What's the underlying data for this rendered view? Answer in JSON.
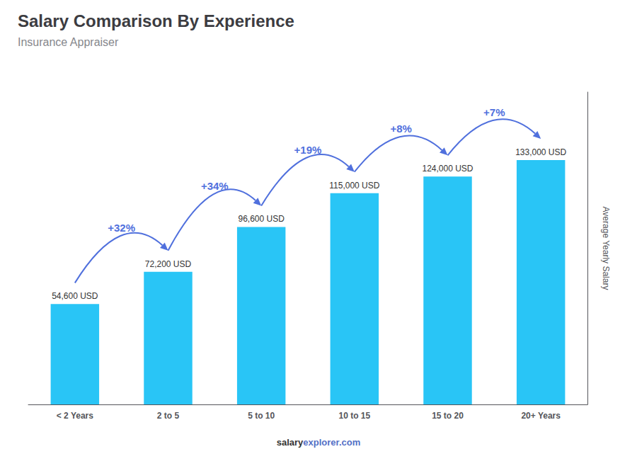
{
  "chart_data": {
    "type": "bar",
    "title": "Salary Comparison By Experience",
    "subtitle": "Insurance Appraiser",
    "ylabel": "Average Yearly Salary",
    "footer": [
      "salary",
      "explorer.com"
    ],
    "categories": [
      "< 2 Years",
      "2 to 5",
      "5 to 10",
      "10 to 15",
      "15 to 20",
      "20+ Years"
    ],
    "values": [
      54600,
      72200,
      96600,
      115000,
      124000,
      133000
    ],
    "value_labels": [
      "54,600 USD",
      "72,200 USD",
      "96,600 USD",
      "115,000 USD",
      "124,000 USD",
      "133,000 USD"
    ],
    "data_labels": true,
    "annotations": [
      "+32%",
      "+34%",
      "+19%",
      "+8%",
      "+7%"
    ],
    "color": "#29c5f6",
    "ylim": [
      0,
      170000
    ],
    "tick_labels": "x",
    "grid": false
  }
}
